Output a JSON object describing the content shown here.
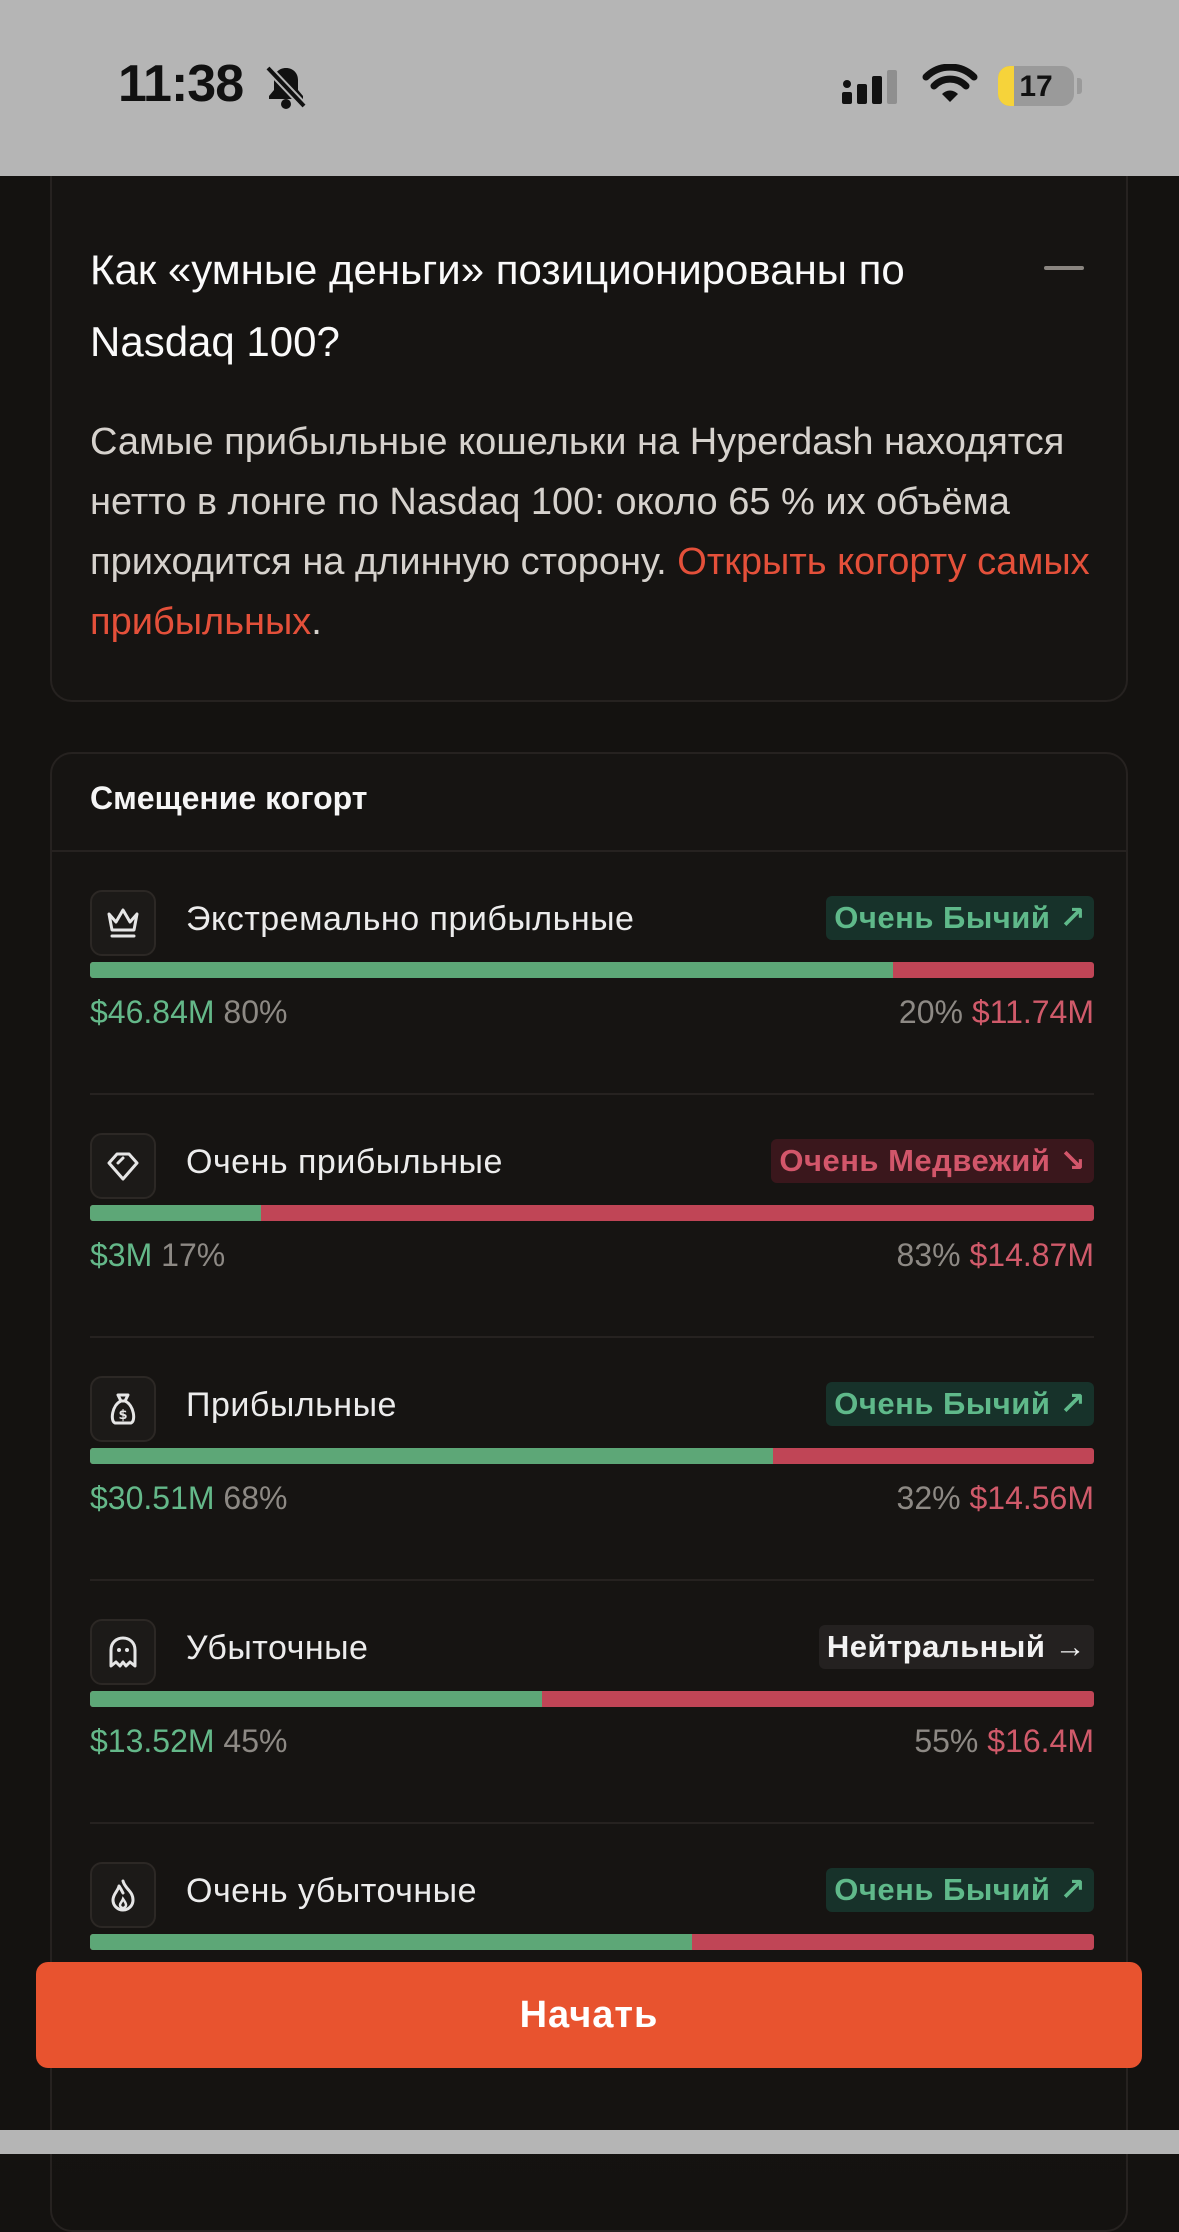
{
  "status_bar": {
    "time": "11:38",
    "battery": "17"
  },
  "faq": {
    "title": "Как «умные деньги» позиционированы по Nasdaq 100?",
    "body": "Самые прибыльные кошельки на Hyperdash находятся нетто в лонге по Nasdaq 100: около 65 % их объёма приходится на длинную сторону. ",
    "link": "Открыть когорту самых прибыльных",
    "link_suffix": "."
  },
  "cohort_bias": {
    "title": "Смещение когорт",
    "rows": [
      {
        "name": "Экстремально прибыльные",
        "icon": "crown-icon",
        "sentiment": "bull",
        "badge": "Очень Бычий ↗",
        "long_usd": "$46.84M",
        "long_pct": "80%",
        "short_pct": "20%",
        "short_usd": "$11.74M",
        "long_fraction": 0.8
      },
      {
        "name": "Очень прибыльные",
        "icon": "diamond-icon",
        "sentiment": "bear",
        "badge": "Очень Медвежий ↘",
        "long_usd": "$3M",
        "long_pct": "17%",
        "short_pct": "83%",
        "short_usd": "$14.87M",
        "long_fraction": 0.17
      },
      {
        "name": "Прибыльные",
        "icon": "money-bag-icon",
        "sentiment": "bull",
        "badge": "Очень Бычий ↗",
        "long_usd": "$30.51M",
        "long_pct": "68%",
        "short_pct": "32%",
        "short_usd": "$14.56M",
        "long_fraction": 0.68
      },
      {
        "name": "Убыточные",
        "icon": "ghost-icon",
        "sentiment": "neutral",
        "badge": "Нейтральный →",
        "long_usd": "$13.52M",
        "long_pct": "45%",
        "short_pct": "55%",
        "short_usd": "$16.4M",
        "long_fraction": 0.45
      },
      {
        "name": "Очень убыточные",
        "icon": "flame-icon",
        "sentiment": "bull",
        "badge": "Очень Бычий ↗",
        "long_usd": "",
        "long_pct": "",
        "short_pct": "",
        "short_usd": "",
        "long_fraction": 0.6
      }
    ]
  },
  "cta": {
    "label": "Начать"
  },
  "colors": {
    "accent": "#e8532f",
    "long": "#5da777",
    "short": "#c04556"
  }
}
